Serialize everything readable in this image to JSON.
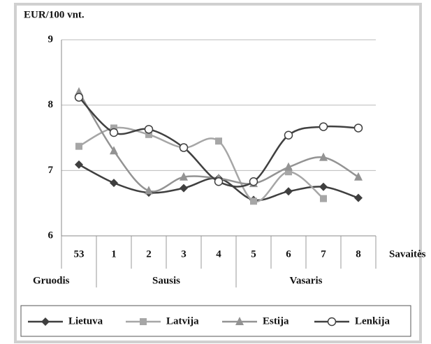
{
  "chart_data": {
    "type": "line",
    "y_axis_label": "EUR/100 vnt.",
    "x_axis_label": "Savaitės",
    "categories": [
      "53",
      "1",
      "2",
      "3",
      "4",
      "5",
      "6",
      "7",
      "8"
    ],
    "category_groups": [
      {
        "label": "Gruodis",
        "count": 1
      },
      {
        "label": "Sausis",
        "count": 4
      },
      {
        "label": "Vasaris",
        "count": 4
      }
    ],
    "ylim": [
      6,
      9
    ],
    "yticks": [
      6,
      7,
      8,
      9
    ],
    "grid": true,
    "series": [
      {
        "name": "Lietuva",
        "color": "#3f3f3f",
        "marker": "diamond",
        "values": [
          7.09,
          6.81,
          6.66,
          6.73,
          6.88,
          6.55,
          6.68,
          6.75,
          6.58
        ]
      },
      {
        "name": "Latvija",
        "color": "#a6a6a6",
        "marker": "square",
        "values": [
          7.37,
          7.65,
          7.55,
          7.35,
          7.45,
          6.53,
          6.98,
          6.57,
          null
        ]
      },
      {
        "name": "Estija",
        "color": "#939393",
        "marker": "triangle",
        "values": [
          8.2,
          7.3,
          6.69,
          6.9,
          6.88,
          6.8,
          7.05,
          7.2,
          6.9
        ]
      },
      {
        "name": "Lenkija",
        "color": "#404040",
        "marker": "circle",
        "values": [
          8.12,
          7.58,
          7.63,
          7.35,
          6.83,
          6.83,
          7.54,
          7.67,
          7.65
        ]
      }
    ]
  }
}
